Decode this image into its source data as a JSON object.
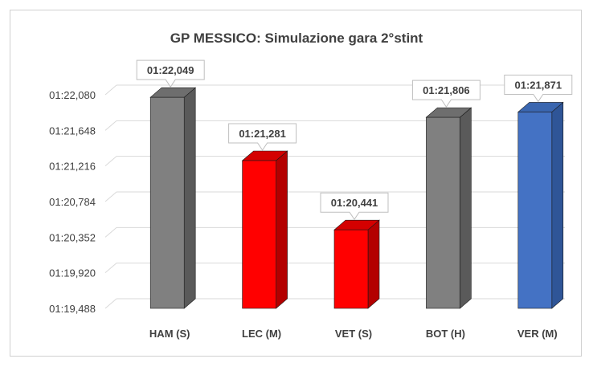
{
  "chart_data": {
    "type": "bar",
    "title": "GP MESSICO: Simulazione gara 2°stint",
    "categories": [
      "HAM (S)",
      "LEC (M)",
      "VET (S)",
      "BOT (H)",
      "VER (M)"
    ],
    "values_seconds": [
      82.049,
      81.281,
      80.441,
      81.806,
      81.871
    ],
    "data_labels": [
      "01:22,049",
      "01:21,281",
      "01:20,441",
      "01:21,806",
      "01:21,871"
    ],
    "ytick_values": [
      79.488,
      79.92,
      80.352,
      80.784,
      81.216,
      81.648,
      82.08
    ],
    "ytick_labels": [
      "01:19,488",
      "01:19,920",
      "01:20,352",
      "01:20,784",
      "01:21,216",
      "01:21,648",
      "01:22,080"
    ],
    "ylim": [
      79.488,
      82.08
    ],
    "grid": true,
    "legend": "none",
    "colors": {
      "front": [
        "#808080",
        "#ff0000",
        "#ff0000",
        "#808080",
        "#4472c4"
      ],
      "side": [
        "#5a5a5a",
        "#b30000",
        "#b30000",
        "#5a5a5a",
        "#2f5597"
      ],
      "top": [
        "#6e6e6e",
        "#d40000",
        "#d40000",
        "#6e6e6e",
        "#3a66b0"
      ]
    }
  }
}
